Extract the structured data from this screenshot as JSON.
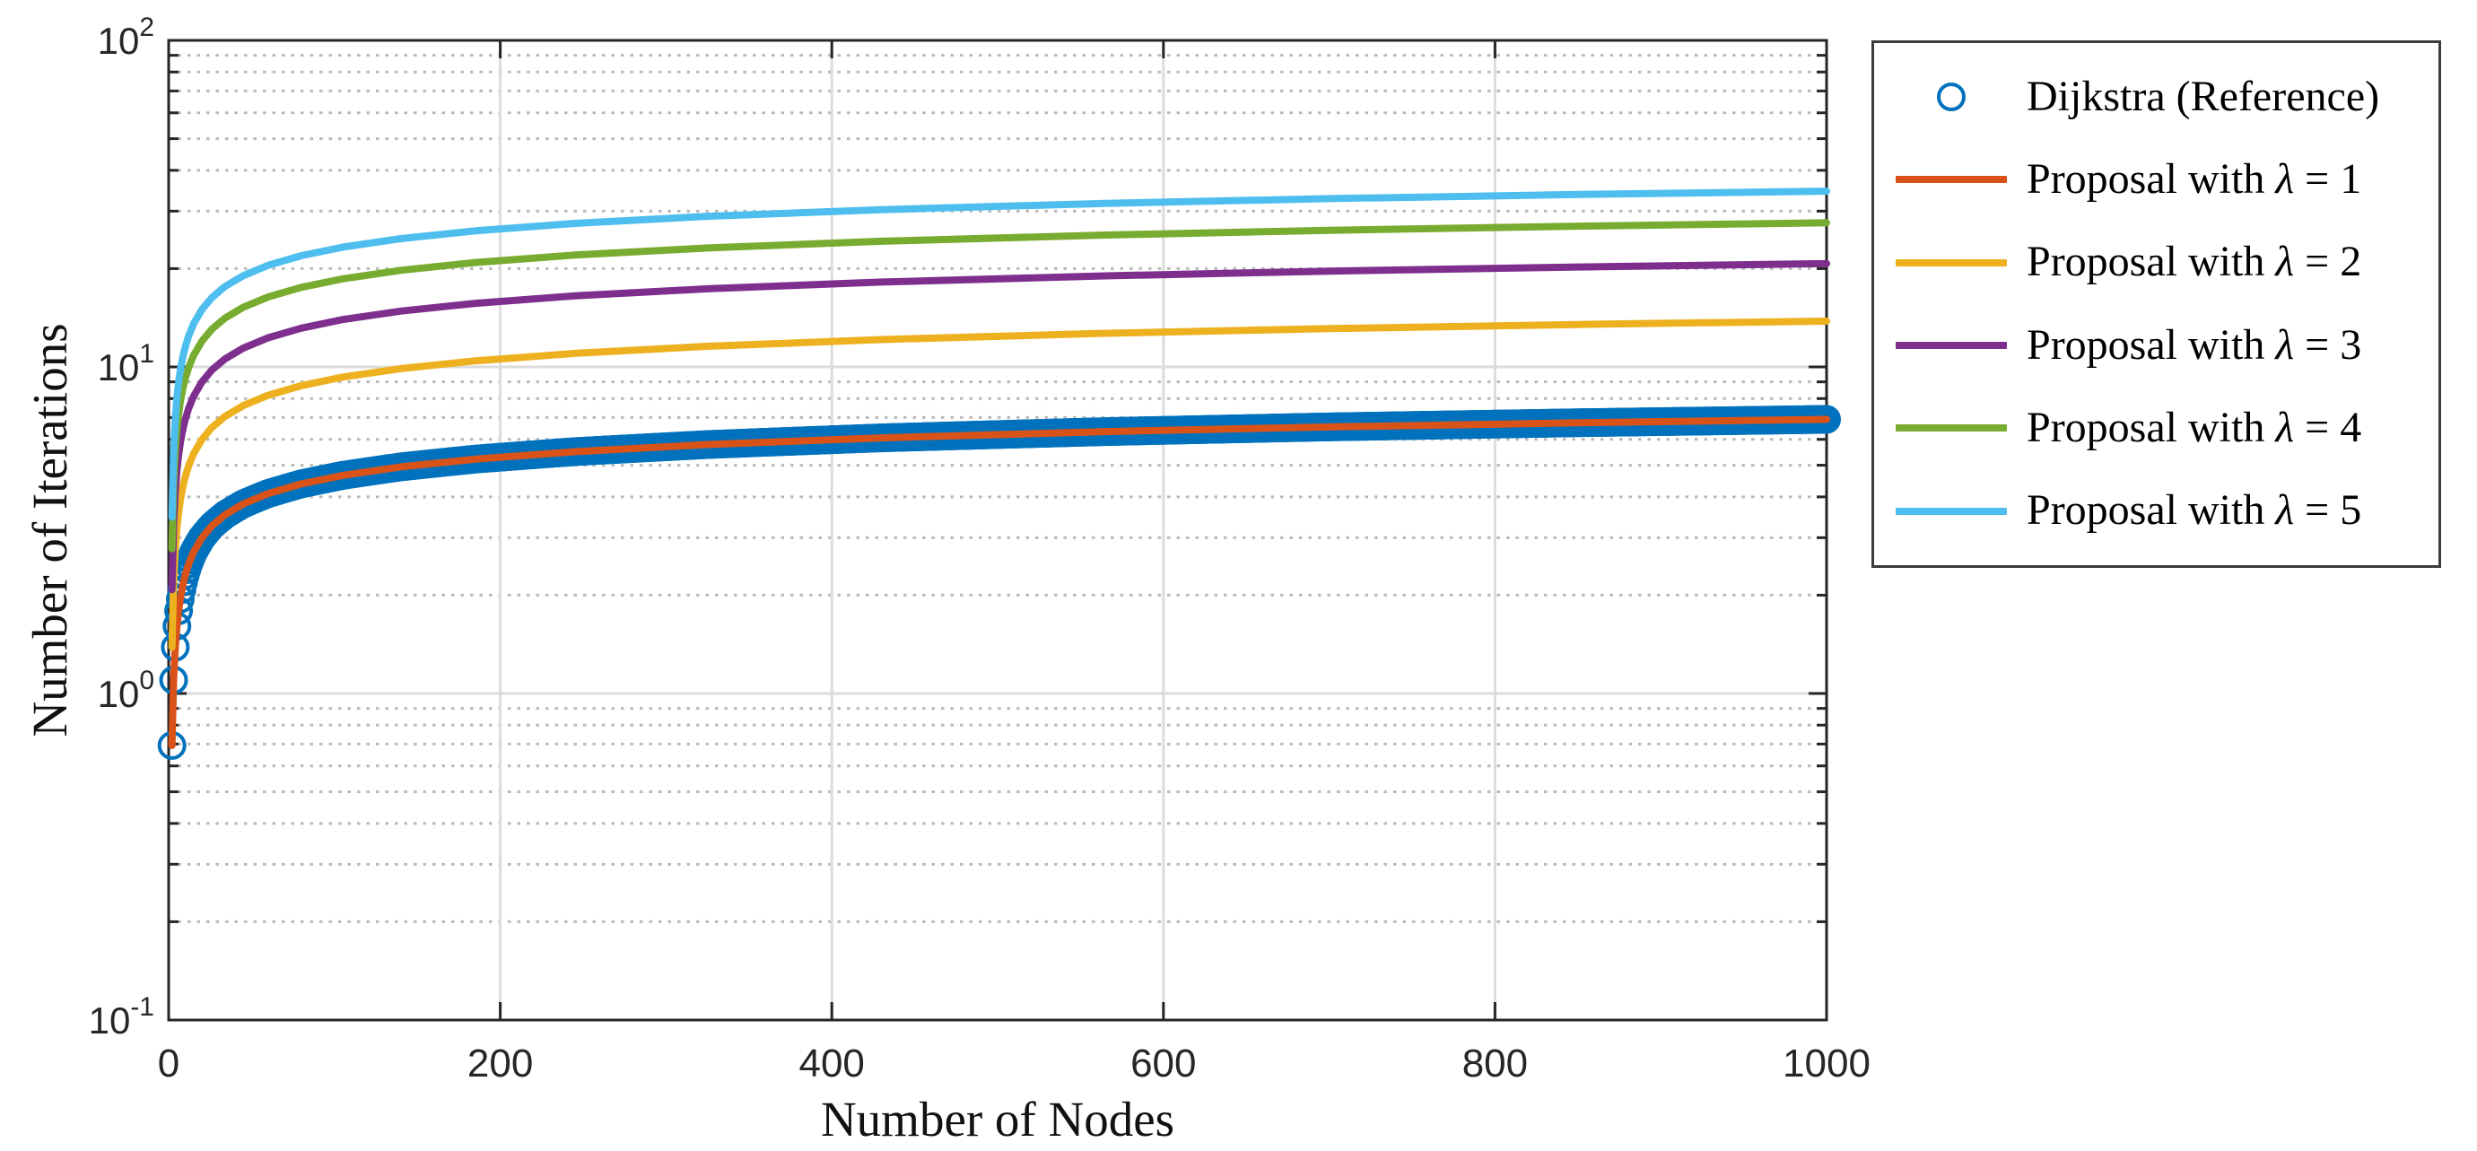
{
  "figure": {
    "background": "#ffffff",
    "axes_color": "#262626",
    "tick_label_color": "#262626",
    "grid_major_color": "#dcdcdc",
    "grid_minor_color": "#b9b9b9"
  },
  "chart_data": {
    "type": "line",
    "title": "",
    "xlabel": "Number of Nodes",
    "ylabel": "Number of Iterations",
    "x_axis": {
      "scale": "linear",
      "min": 0,
      "max": 1000,
      "ticks": [
        0,
        200,
        400,
        600,
        800,
        1000
      ]
    },
    "y_axis": {
      "scale": "log",
      "min": 0.1,
      "max": 100,
      "ticks": [
        {
          "base": "10",
          "exp": "-1"
        },
        {
          "base": "10",
          "exp": "0"
        },
        {
          "base": "10",
          "exp": "1"
        },
        {
          "base": "10",
          "exp": "2"
        }
      ]
    },
    "grid": {
      "major": true,
      "minor_y_dotted": true
    },
    "legend_position": "outside-top-right",
    "x": [
      2,
      3,
      4,
      5,
      6,
      7,
      8,
      9,
      10,
      12,
      15,
      20,
      26,
      34,
      45,
      60,
      80,
      105,
      140,
      185,
      245,
      325,
      430,
      565,
      700,
      850,
      1000
    ],
    "series": [
      {
        "name": "Dijkstra (Reference)",
        "color": "#0072BD",
        "style": "circles",
        "marker": "o",
        "values": [
          0.693,
          1.099,
          1.386,
          1.609,
          1.792,
          1.946,
          2.079,
          2.197,
          2.303,
          2.485,
          2.708,
          2.996,
          3.258,
          3.526,
          3.807,
          4.094,
          4.382,
          4.654,
          4.942,
          5.22,
          5.501,
          5.784,
          6.064,
          6.337,
          6.551,
          6.745,
          6.908
        ]
      },
      {
        "name": "Proposal with λ = 1",
        "color": "#D95319",
        "style": "line",
        "values": [
          0.693,
          1.099,
          1.386,
          1.609,
          1.792,
          1.946,
          2.079,
          2.197,
          2.303,
          2.485,
          2.708,
          2.996,
          3.258,
          3.526,
          3.807,
          4.094,
          4.382,
          4.654,
          4.942,
          5.22,
          5.501,
          5.784,
          6.064,
          6.337,
          6.551,
          6.745,
          6.908
        ]
      },
      {
        "name": "Proposal with λ = 2",
        "color": "#EDB120",
        "style": "line",
        "values": [
          1.386,
          2.197,
          2.773,
          3.219,
          3.584,
          3.892,
          4.159,
          4.394,
          4.605,
          4.97,
          5.416,
          5.991,
          6.516,
          7.053,
          7.613,
          8.189,
          8.764,
          9.308,
          9.883,
          10.441,
          11.003,
          11.568,
          12.128,
          12.674,
          13.102,
          13.49,
          13.816
        ]
      },
      {
        "name": "Proposal with λ = 3",
        "color": "#7E2F8E",
        "style": "line",
        "values": [
          2.079,
          3.296,
          4.159,
          4.828,
          5.375,
          5.838,
          6.238,
          6.592,
          6.908,
          7.455,
          8.124,
          8.987,
          9.774,
          10.579,
          11.42,
          12.283,
          13.146,
          13.962,
          14.825,
          15.661,
          16.504,
          17.351,
          18.191,
          19.01,
          19.653,
          20.236,
          20.723
        ]
      },
      {
        "name": "Proposal with λ = 4",
        "color": "#77AC30",
        "style": "line",
        "values": [
          2.773,
          4.394,
          5.545,
          6.438,
          7.167,
          7.784,
          8.318,
          8.789,
          9.21,
          9.94,
          10.833,
          11.983,
          13.032,
          14.106,
          15.227,
          16.377,
          17.528,
          18.616,
          19.766,
          20.882,
          22.005,
          23.135,
          24.255,
          25.347,
          26.204,
          26.981,
          27.631
        ]
      },
      {
        "name": "Proposal with λ = 5",
        "color": "#4DBEEE",
        "style": "line",
        "values": [
          3.466,
          5.493,
          6.931,
          8.047,
          8.959,
          9.73,
          10.397,
          10.986,
          11.513,
          12.425,
          13.541,
          14.979,
          16.29,
          17.632,
          19.034,
          20.472,
          21.91,
          23.27,
          24.708,
          26.102,
          27.507,
          28.919,
          30.319,
          31.684,
          32.755,
          33.726,
          34.539
        ]
      }
    ]
  }
}
